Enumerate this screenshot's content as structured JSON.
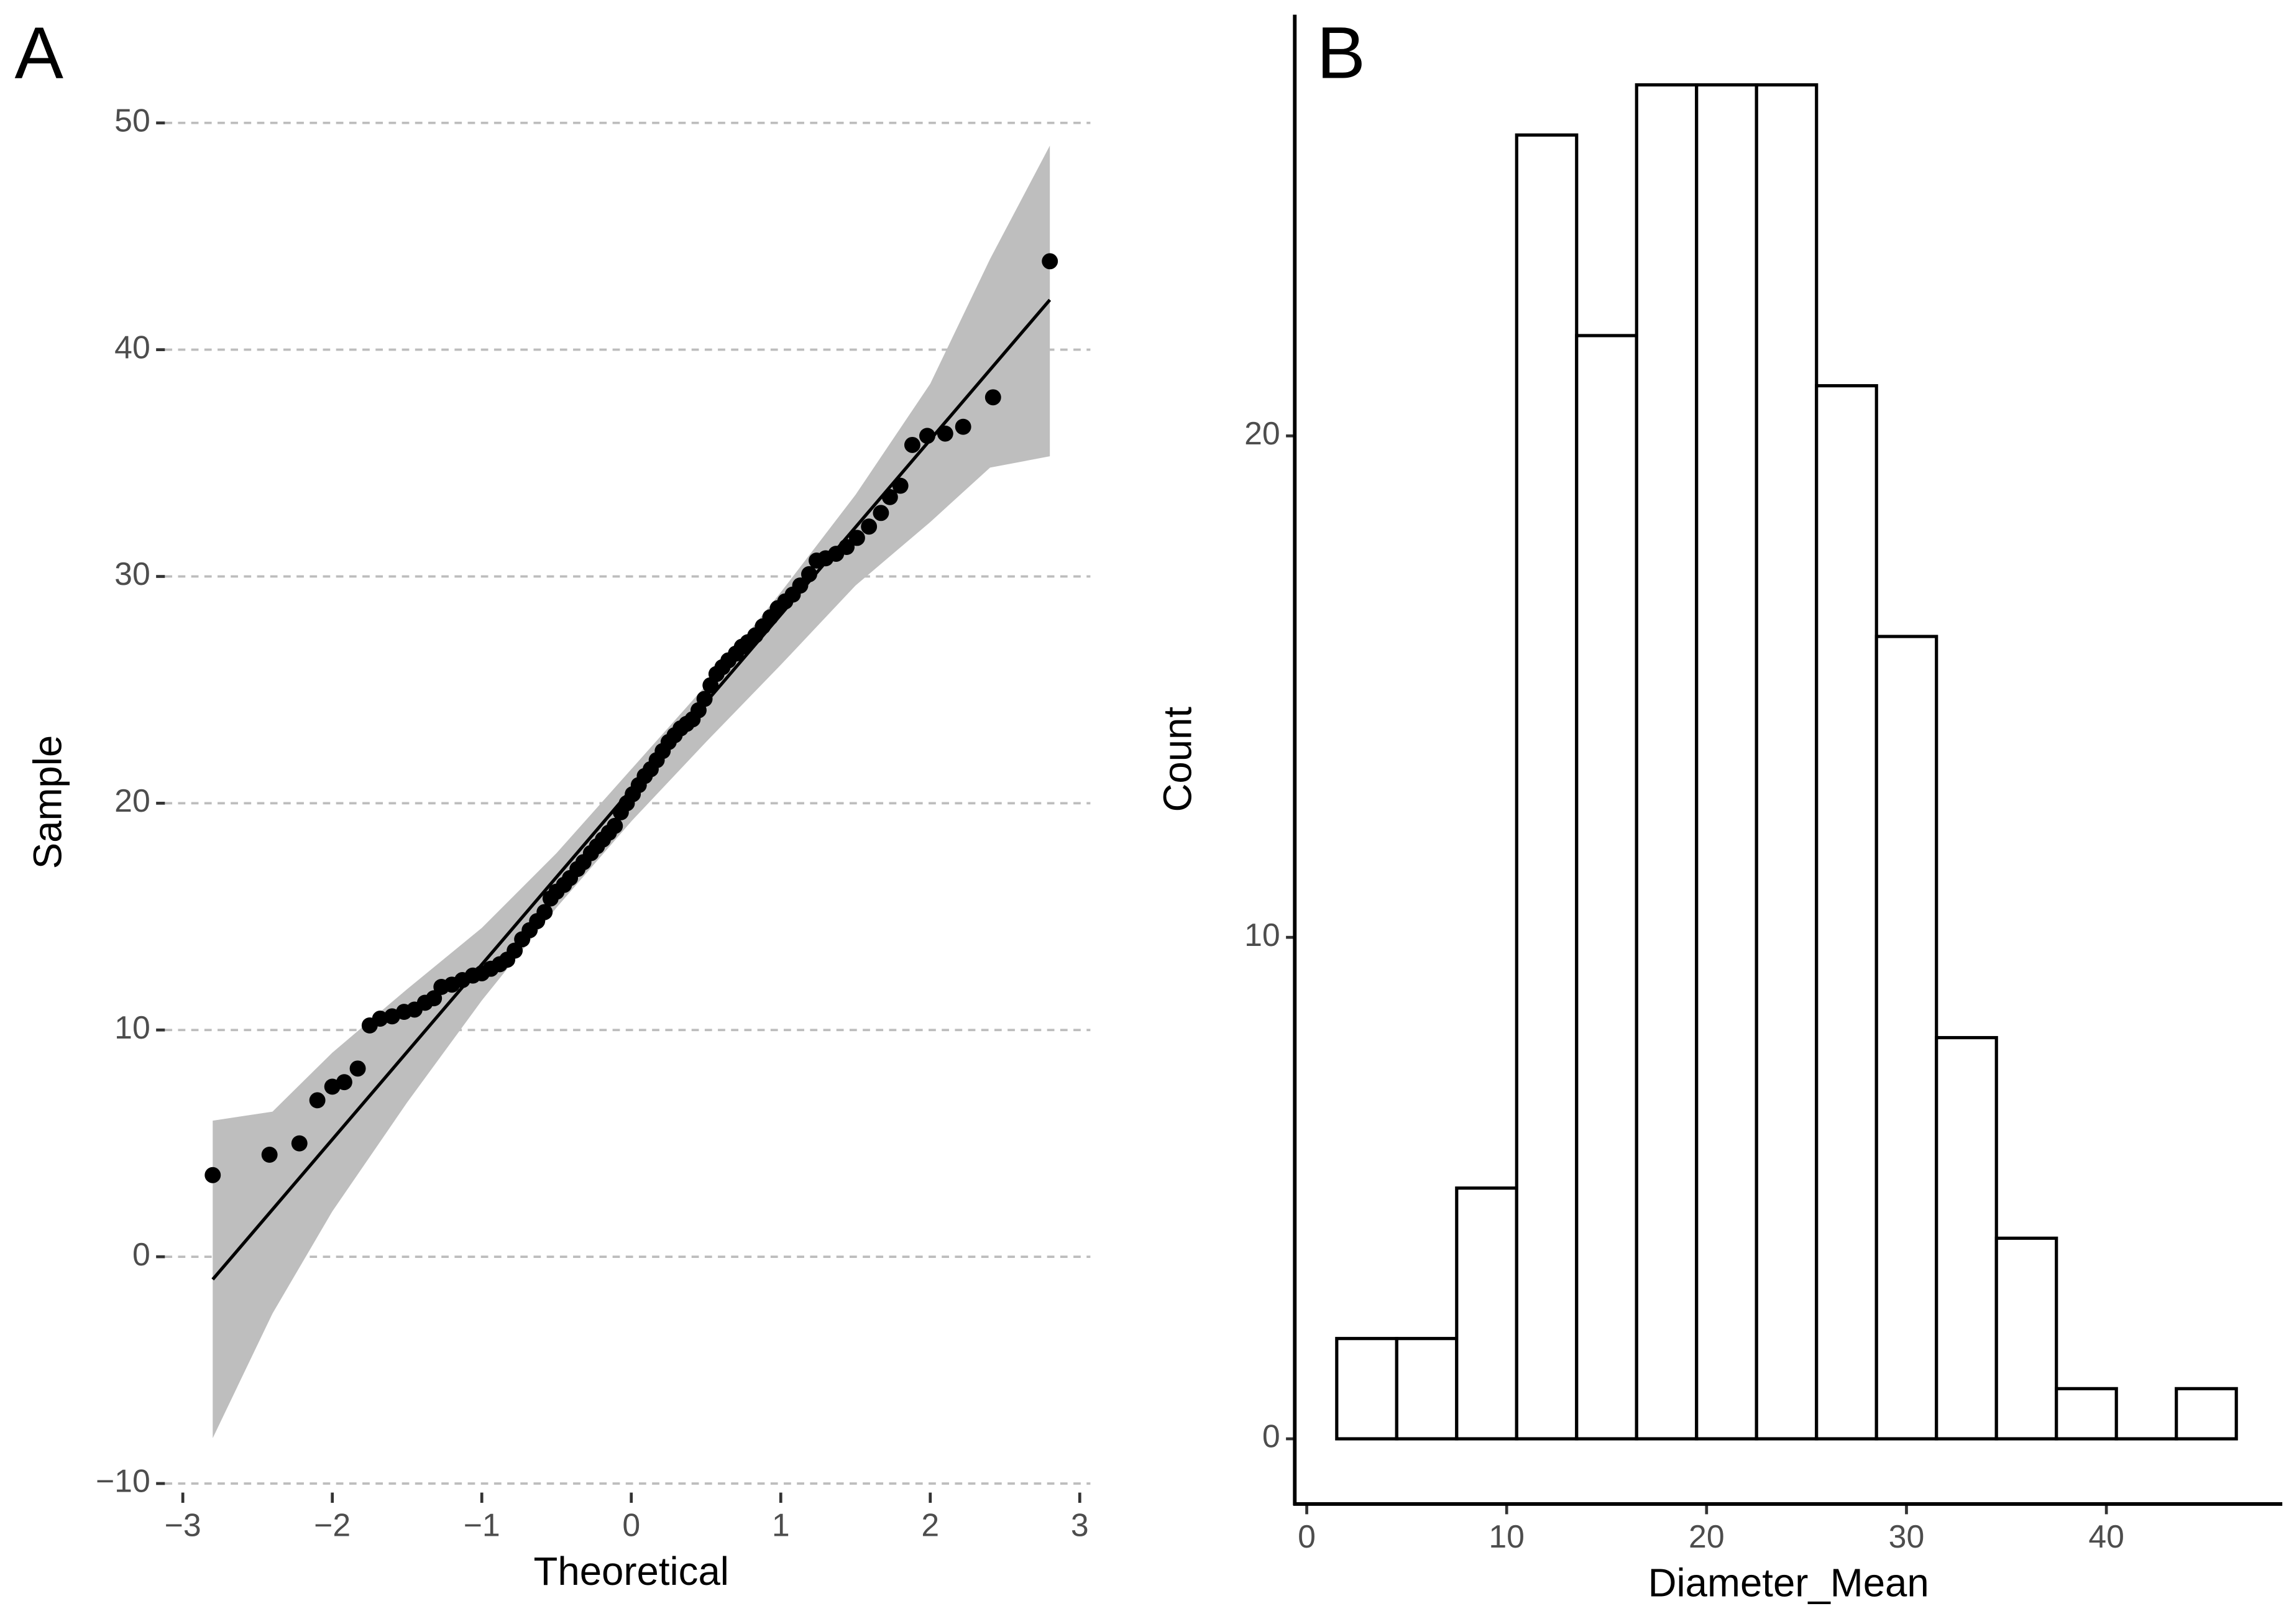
{
  "chart_data": [
    {
      "type": "scatter",
      "tag": "A",
      "xlabel": "Theoretical",
      "ylabel": "Sample",
      "xlim": [
        -3.12,
        3.12
      ],
      "ylim": [
        -10.4,
        50.5
      ],
      "xticks": [
        {
          "value": -3,
          "label": "−3"
        },
        {
          "value": -2,
          "label": "−2"
        },
        {
          "value": -1,
          "label": "−1"
        },
        0,
        1,
        2,
        3
      ],
      "yticks": [
        {
          "value": -10,
          "label": "−10"
        },
        0,
        10,
        20,
        30,
        40,
        50
      ],
      "grid": true,
      "color": "#000000",
      "band_color": "#bebebe",
      "x": [
        -2.8,
        -2.42,
        -2.22,
        -2.1,
        -2.0,
        -1.92,
        -1.83,
        -1.75,
        -1.68,
        -1.6,
        -1.52,
        -1.45,
        -1.38,
        -1.32,
        -1.27,
        -1.2,
        -1.13,
        -1.06,
        -1.0,
        -0.94,
        -0.88,
        -0.83,
        -0.78,
        -0.73,
        -0.68,
        -0.63,
        -0.58,
        -0.54,
        -0.5,
        -0.45,
        -0.41,
        -0.36,
        -0.32,
        -0.27,
        -0.23,
        -0.19,
        -0.15,
        -0.11,
        -0.07,
        -0.03,
        0.01,
        0.05,
        0.09,
        0.13,
        0.17,
        0.21,
        0.25,
        0.29,
        0.33,
        0.37,
        0.41,
        0.45,
        0.49,
        0.53,
        0.57,
        0.61,
        0.65,
        0.7,
        0.74,
        0.78,
        0.83,
        0.88,
        0.93,
        0.98,
        1.03,
        1.08,
        1.13,
        1.19,
        1.24,
        1.3,
        1.37,
        1.44,
        1.51,
        1.59,
        1.67,
        1.73,
        1.8,
        1.88,
        1.98,
        2.1,
        2.22,
        2.42,
        2.8
      ],
      "values": [
        3.6,
        4.5,
        5.0,
        6.9,
        7.5,
        7.7,
        8.3,
        10.2,
        10.5,
        10.6,
        10.8,
        10.9,
        11.2,
        11.4,
        11.9,
        12.0,
        12.2,
        12.4,
        12.5,
        12.7,
        12.9,
        13.1,
        13.5,
        14.0,
        14.4,
        14.8,
        15.2,
        15.8,
        16.1,
        16.4,
        16.7,
        17.1,
        17.4,
        17.8,
        18.1,
        18.4,
        18.7,
        19.0,
        19.6,
        20.0,
        20.4,
        20.8,
        21.2,
        21.5,
        21.9,
        22.3,
        22.7,
        23.0,
        23.3,
        23.5,
        23.7,
        24.1,
        24.6,
        25.2,
        25.7,
        26.0,
        26.3,
        26.6,
        26.9,
        27.1,
        27.4,
        27.8,
        28.2,
        28.6,
        28.9,
        29.2,
        29.6,
        30.1,
        30.7,
        30.8,
        31.0,
        31.3,
        31.7,
        32.2,
        32.8,
        33.5,
        34.0,
        35.8,
        36.2,
        36.3,
        36.6,
        37.9,
        43.9
      ],
      "line": {
        "x": [
          -2.8,
          2.8
        ],
        "values": [
          -1,
          42.2
        ]
      },
      "band": {
        "x": [
          -2.8,
          -2.4,
          -2.0,
          -1.5,
          -1.0,
          -0.5,
          0,
          0.5,
          1,
          1.5,
          2,
          2.4,
          2.8
        ],
        "upper": [
          6.0,
          6.4,
          9.0,
          11.8,
          14.5,
          17.8,
          21.5,
          25.2,
          29.3,
          33.6,
          38.5,
          44,
          49
        ],
        "lower": [
          -8,
          -2.5,
          2.0,
          6.8,
          11.3,
          15.4,
          19.2,
          22.7,
          26.1,
          29.6,
          32.4,
          34.8,
          35.3
        ]
      }
    },
    {
      "type": "histogram",
      "tag": "B",
      "xlabel": "Diameter_Mean",
      "ylabel": "Count",
      "xlim": [
        -0.6,
        48.8
      ],
      "ylim": [
        -1.3,
        28.4
      ],
      "xticks": [
        0,
        10,
        20,
        30,
        40
      ],
      "yticks": [
        0,
        10,
        20
      ],
      "bins": [
        1.5,
        4.5,
        7.5,
        10.5,
        13.5,
        16.5,
        19.5,
        22.5,
        25.5,
        28.5,
        31.5,
        34.5,
        37.5,
        40.5,
        43.5,
        46.5
      ],
      "values": [
        2,
        2,
        5,
        26,
        22,
        27,
        27,
        27,
        21,
        16,
        8,
        4,
        1,
        0,
        1
      ],
      "color": "#ffffff",
      "edge_color": "#000000"
    }
  ]
}
